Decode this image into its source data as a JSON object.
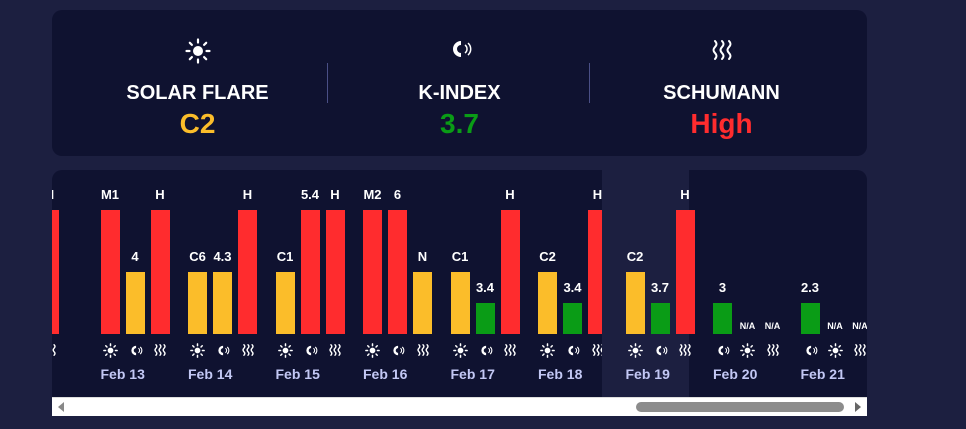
{
  "colors": {
    "yellow": "#fbbd2a",
    "green": "#0a9c16",
    "red": "#ff2c2e",
    "partial": "#ff2c2e"
  },
  "summary": {
    "solar": {
      "label": "SOLAR FLARE",
      "value": "C2",
      "color": "#fbbd2a",
      "icon": "sun-icon"
    },
    "kindex": {
      "label": "K-INDEX",
      "value": "3.7",
      "color": "#0a9c16",
      "icon": "magnet-icon"
    },
    "schumann": {
      "label": "SCHUMANN",
      "value": "High",
      "color": "#ff2c2e",
      "icon": "waves-icon"
    }
  },
  "days": [
    {
      "date": "",
      "partial": true,
      "bars": [
        {
          "label": "H",
          "color": "red",
          "level": 1.0
        }
      ]
    },
    {
      "date": "Feb 13",
      "bars": [
        {
          "label": "M1",
          "color": "red",
          "level": 1.0
        },
        {
          "label": "4",
          "color": "yellow",
          "level": 0.5
        },
        {
          "label": "H",
          "color": "red",
          "level": 1.0
        }
      ]
    },
    {
      "date": "Feb 14",
      "bars": [
        {
          "label": "C6",
          "color": "yellow",
          "level": 0.5
        },
        {
          "label": "4.3",
          "color": "yellow",
          "level": 0.5
        },
        {
          "label": "H",
          "color": "red",
          "level": 1.0
        }
      ]
    },
    {
      "date": "Feb 15",
      "bars": [
        {
          "label": "C1",
          "color": "yellow",
          "level": 0.5
        },
        {
          "label": "5.4",
          "color": "red",
          "level": 1.0
        },
        {
          "label": "H",
          "color": "red",
          "level": 1.0
        }
      ]
    },
    {
      "date": "Feb 16",
      "bars": [
        {
          "label": "M2",
          "color": "red",
          "level": 1.0
        },
        {
          "label": "6",
          "color": "red",
          "level": 1.0
        },
        {
          "label": "N",
          "color": "yellow",
          "level": 0.5
        }
      ]
    },
    {
      "date": "Feb 17",
      "bars": [
        {
          "label": "C1",
          "color": "yellow",
          "level": 0.5
        },
        {
          "label": "3.4",
          "color": "green",
          "level": 0.25
        },
        {
          "label": "H",
          "color": "red",
          "level": 1.0
        }
      ]
    },
    {
      "date": "Feb 18",
      "bars": [
        {
          "label": "C2",
          "color": "yellow",
          "level": 0.5
        },
        {
          "label": "3.4",
          "color": "green",
          "level": 0.25
        },
        {
          "label": "H",
          "color": "red",
          "level": 1.0
        }
      ]
    },
    {
      "date": "Feb 19",
      "highlight": true,
      "bars": [
        {
          "label": "C2",
          "color": "yellow",
          "level": 0.5
        },
        {
          "label": "3.7",
          "color": "green",
          "level": 0.25
        },
        {
          "label": "H",
          "color": "red",
          "level": 1.0
        }
      ]
    },
    {
      "date": "Feb 20",
      "forecast": true,
      "bars": [
        {
          "label": "3",
          "color": "green",
          "level": 0.25
        },
        {
          "label": "N/A",
          "color": "none",
          "level": 0
        },
        {
          "label": "N/A",
          "color": "none",
          "level": 0
        }
      ]
    },
    {
      "date": "Feb 21",
      "forecast": true,
      "bars": [
        {
          "label": "2.3",
          "color": "green",
          "level": 0.25
        },
        {
          "label": "N/A",
          "color": "none",
          "level": 0
        },
        {
          "label": "N/A",
          "color": "none",
          "level": 0
        }
      ]
    }
  ]
}
